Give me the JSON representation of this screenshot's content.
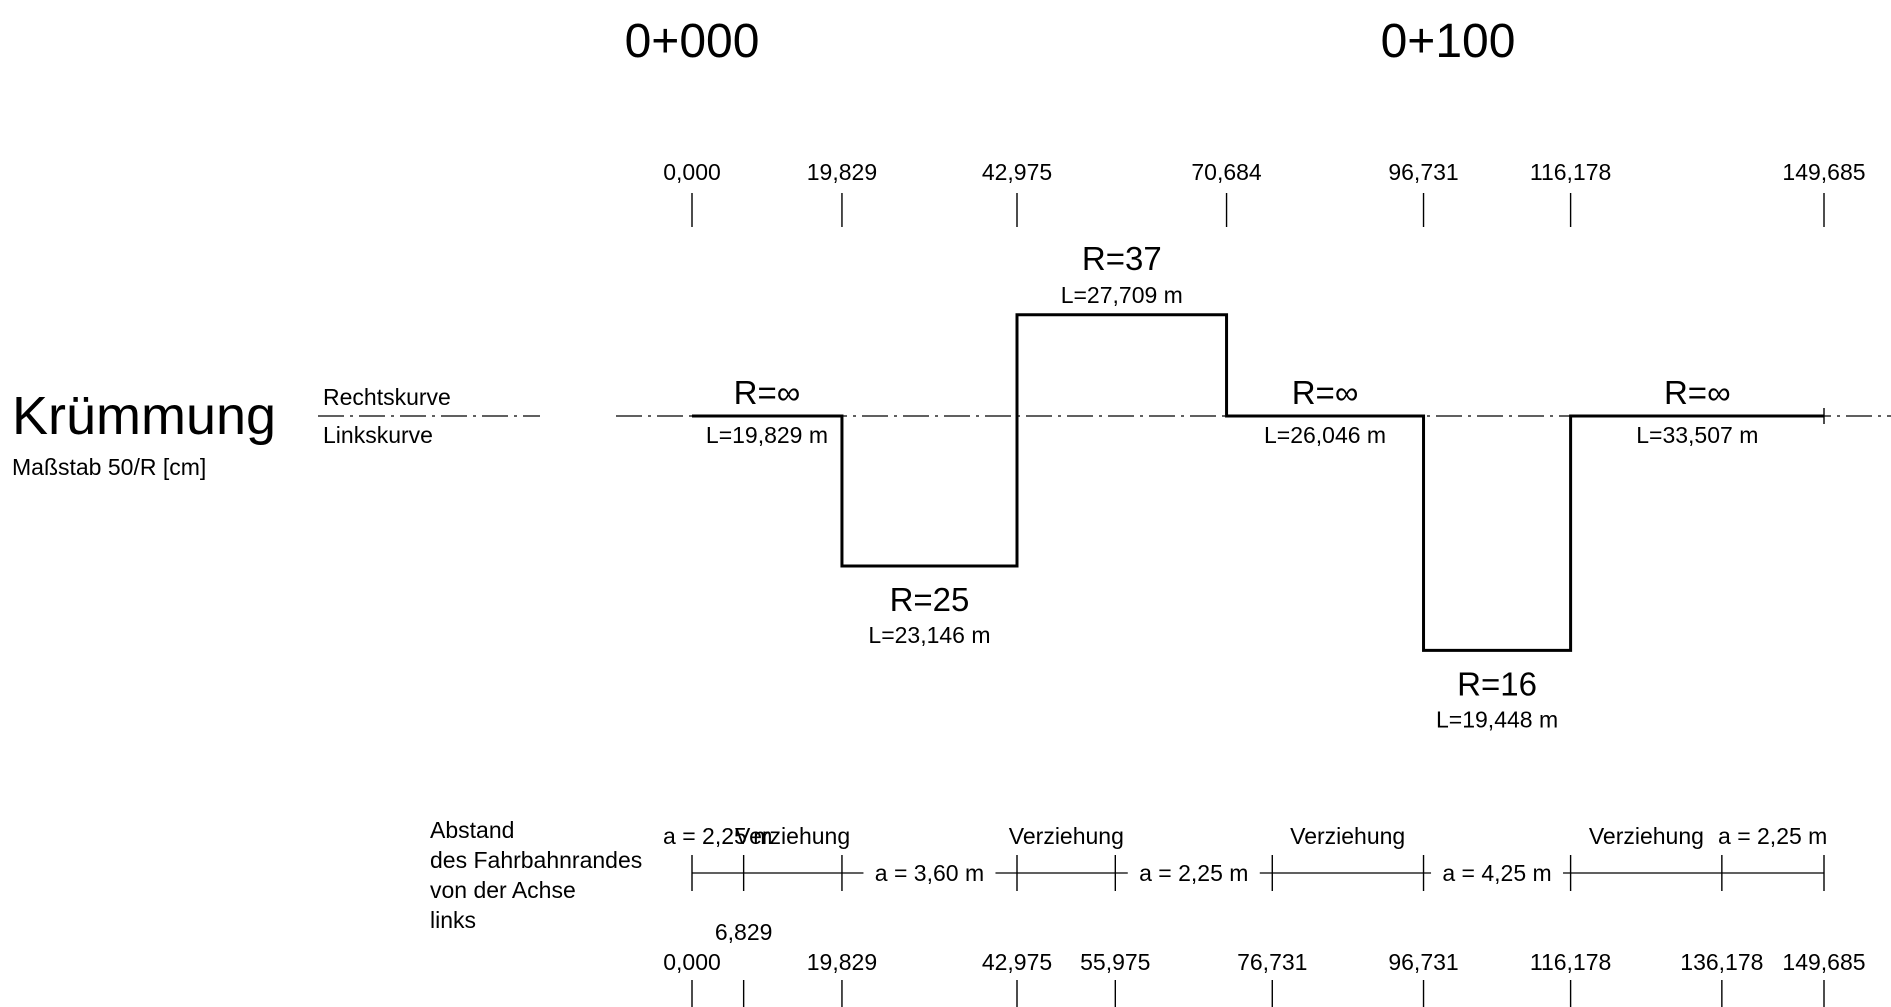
{
  "station_headers": [
    "0+000",
    "0+100"
  ],
  "title": "Krümmung",
  "scale_label": "Maßstab 50/R [cm]",
  "side_labels": {
    "right": "Rechtskurve",
    "left": "Linkskurve"
  },
  "top_stations": [
    "0,000",
    "19,829",
    "42,975",
    "70,684",
    "96,731",
    "116,178",
    "149,685"
  ],
  "curvature_elements": [
    {
      "radius": "R=∞",
      "length": "L=19,829 m",
      "start": 0.0,
      "end": 19.829,
      "curvature": 0
    },
    {
      "radius": "R=25",
      "length": "L=23,146 m",
      "start": 19.829,
      "end": 42.975,
      "curvature": -0.04
    },
    {
      "radius": "R=37",
      "length": "L=27,709 m",
      "start": 42.975,
      "end": 70.684,
      "curvature": 0.027
    },
    {
      "radius": "R=∞",
      "length": "L=26,046 m",
      "start": 70.684,
      "end": 96.731,
      "curvature": 0
    },
    {
      "radius": "R=16",
      "length": "L=19,448 m",
      "start": 96.731,
      "end": 116.178,
      "curvature": -0.0625
    },
    {
      "radius": "R=∞",
      "length": "L=33,507 m",
      "start": 116.178,
      "end": 149.685,
      "curvature": 0
    }
  ],
  "edge_distance": {
    "label_lines": [
      "Abstand",
      "des Fahrbahnrandes",
      "von der Achse",
      "links"
    ],
    "labels": [
      "a = 2,25 m",
      "Verziehung",
      "a = 3,60 m",
      "Verziehung",
      "a = 2,25 m",
      "Verziehung",
      "a = 4,25 m",
      "Verziehung",
      "a = 2,25 m"
    ],
    "stations": [
      "0,000",
      "6,829",
      "19,829",
      "42,975",
      "55,975",
      "76,731",
      "96,731",
      "116,178",
      "136,178",
      "149,685"
    ]
  }
}
